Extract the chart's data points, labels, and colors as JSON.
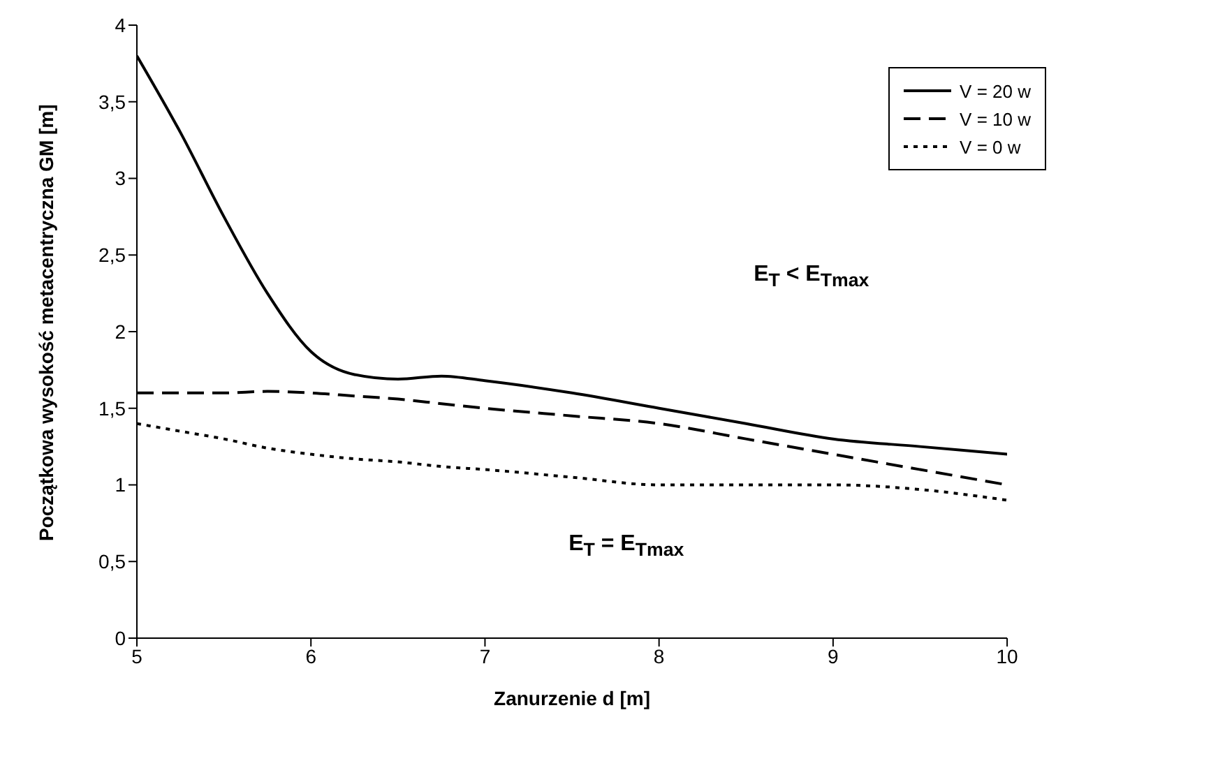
{
  "chart_data": {
    "type": "line",
    "xlabel": "Zanurzenie d [m]",
    "ylabel": "Początkowa wysokość metacentryczna GM [m]",
    "x": [
      5,
      5.25,
      5.5,
      5.75,
      6,
      6.25,
      6.5,
      6.75,
      7,
      7.5,
      8,
      8.5,
      9,
      9.5,
      10
    ],
    "series": [
      {
        "name": "V = 20 w",
        "color": "#000000",
        "line_style": "solid",
        "values": [
          3.8,
          3.3,
          2.75,
          2.25,
          1.87,
          1.72,
          1.69,
          1.71,
          1.68,
          1.6,
          1.5,
          1.4,
          1.3,
          1.25,
          1.2
        ]
      },
      {
        "name": "V = 10 w",
        "color": "#000000",
        "line_style": "dashed",
        "values": [
          1.6,
          1.6,
          1.6,
          1.61,
          1.6,
          1.58,
          1.56,
          1.53,
          1.5,
          1.45,
          1.4,
          1.3,
          1.2,
          1.1,
          1.0
        ]
      },
      {
        "name": "V = 0 w",
        "color": "#000000",
        "line_style": "dotted",
        "values": [
          1.4,
          1.35,
          1.3,
          1.24,
          1.2,
          1.17,
          1.15,
          1.12,
          1.1,
          1.05,
          1.0,
          1.0,
          1.0,
          0.97,
          0.9
        ]
      }
    ],
    "xlim": [
      5,
      10
    ],
    "xticks": [
      5,
      6,
      7,
      8,
      9,
      10
    ],
    "ylim": [
      0,
      4
    ],
    "yticks": [
      0,
      {
        "value": 0.5,
        "label": "0,5"
      },
      1,
      {
        "value": 1.5,
        "label": "1,5"
      },
      2,
      {
        "value": 2.5,
        "label": "2,5"
      },
      3,
      {
        "value": 3.5,
        "label": "3,5"
      },
      4
    ],
    "annotations": [
      "E$_{T}$ < E$_{Tmax}$",
      "E$_{T}$ = E$_{Tmax}$"
    ],
    "legend": "top right",
    "marker": "none",
    "grid": false
  }
}
